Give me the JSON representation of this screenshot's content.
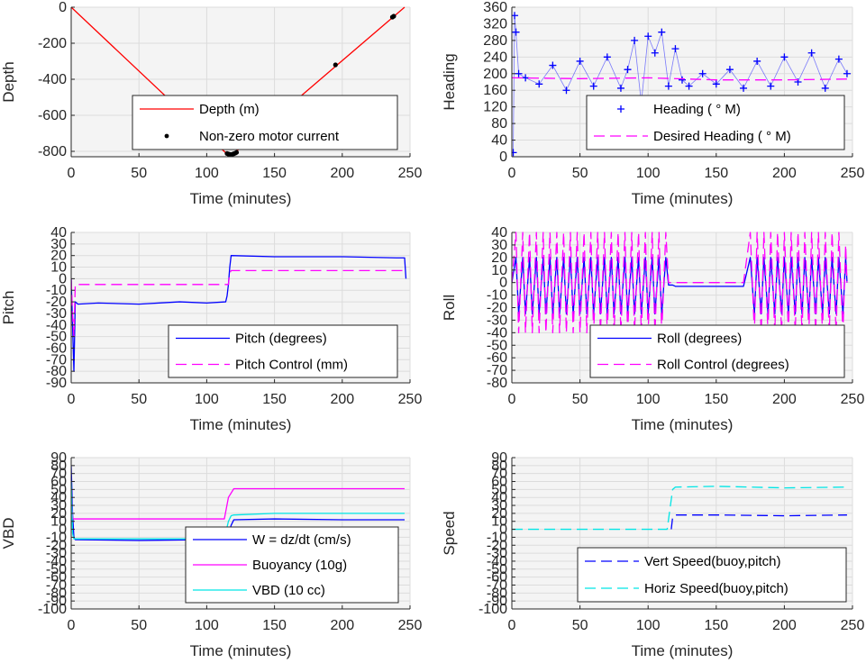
{
  "chart_data": [
    {
      "type": "line",
      "xlabel": "Time (minutes)",
      "ylabel": "Depth",
      "xlim": [
        0,
        250
      ],
      "ylim": [
        -830,
        0
      ],
      "xticks": [
        0,
        50,
        100,
        150,
        200,
        250
      ],
      "yticks": [
        0,
        -200,
        -400,
        -600,
        -800
      ],
      "legend_position": "lower-right",
      "series": [
        {
          "name": "Depth (m)",
          "style": "solid",
          "color": "#ff0000",
          "x": [
            0,
            115,
            117,
            120,
            246
          ],
          "y": [
            0,
            -815,
            -818,
            -812,
            0
          ]
        },
        {
          "name": "Non-zero motor current",
          "style": "dot",
          "color": "#000000",
          "x": [
            115,
            116,
            117,
            118,
            119,
            120,
            121,
            122,
            195,
            237,
            238
          ],
          "y": [
            -812,
            -815,
            -817,
            -818,
            -816,
            -813,
            -810,
            -806,
            -320,
            -55,
            -50
          ]
        }
      ]
    },
    {
      "type": "scatter",
      "xlabel": "Time (minutes)",
      "ylabel": "Heading",
      "xlim": [
        0,
        250
      ],
      "ylim": [
        0,
        360
      ],
      "xticks": [
        0,
        50,
        100,
        150,
        200,
        250
      ],
      "yticks": [
        0,
        40,
        80,
        120,
        160,
        200,
        240,
        280,
        320,
        360
      ],
      "legend_position": "lower-right",
      "series": [
        {
          "name": "Heading (  ° M)",
          "style": "plus",
          "color": "#0000ff",
          "x": [
            1,
            2,
            3,
            5,
            10,
            20,
            30,
            40,
            50,
            60,
            70,
            80,
            85,
            90,
            95,
            100,
            105,
            110,
            115,
            120,
            125,
            130,
            140,
            150,
            160,
            170,
            180,
            190,
            200,
            210,
            220,
            230,
            240,
            246
          ],
          "y": [
            10,
            340,
            300,
            200,
            190,
            175,
            220,
            160,
            230,
            170,
            240,
            165,
            210,
            280,
            130,
            290,
            250,
            300,
            170,
            260,
            185,
            170,
            200,
            175,
            210,
            165,
            230,
            170,
            240,
            180,
            250,
            165,
            235,
            200
          ]
        },
        {
          "name": "Desired Heading (    ° M)",
          "style": "dashed",
          "color": "#ff00ff",
          "x": [
            0,
            50,
            100,
            150,
            200,
            246
          ],
          "y": [
            190,
            188,
            190,
            185,
            185,
            187
          ]
        }
      ]
    },
    {
      "type": "line",
      "xlabel": "Time (minutes)",
      "ylabel": "Pitch",
      "xlim": [
        0,
        250
      ],
      "ylim": [
        -90,
        40
      ],
      "xticks": [
        0,
        50,
        100,
        150,
        200,
        250
      ],
      "yticks": [
        40,
        30,
        20,
        10,
        0,
        -10,
        -20,
        -30,
        -40,
        -50,
        -60,
        -70,
        -80,
        -90
      ],
      "legend_position": "lower-right",
      "series": [
        {
          "name": "Pitch (degrees)",
          "style": "solid",
          "color": "#0000ff",
          "x": [
            0,
            1,
            2,
            3,
            5,
            20,
            50,
            80,
            100,
            114,
            115,
            116,
            117,
            118,
            150,
            200,
            240,
            246,
            247
          ],
          "y": [
            0,
            -40,
            -80,
            -20,
            -22,
            -21,
            -22,
            -20,
            -21,
            -20,
            -15,
            -5,
            10,
            20,
            19,
            19,
            18,
            18,
            0
          ]
        },
        {
          "name": "Pitch Control (mm)",
          "style": "dashed",
          "color": "#ff00ff",
          "x": [
            0,
            1,
            2,
            3,
            10,
            100,
            114,
            116,
            117,
            118,
            150,
            200,
            246
          ],
          "y": [
            0,
            -30,
            -50,
            -5,
            -5,
            -5,
            -5,
            -5,
            5,
            7,
            7,
            7,
            7
          ]
        }
      ]
    },
    {
      "type": "line",
      "xlabel": "Time (minutes)",
      "ylabel": "Roll",
      "xlim": [
        0,
        250
      ],
      "ylim": [
        -80,
        40
      ],
      "xticks": [
        0,
        50,
        100,
        150,
        200,
        250
      ],
      "yticks": [
        40,
        30,
        20,
        10,
        0,
        -10,
        -20,
        -30,
        -40,
        -50,
        -60,
        -70,
        -80
      ],
      "legend_position": "lower-right",
      "series": [
        {
          "name": "Roll (degrees)",
          "style": "solid",
          "color": "#0000ff",
          "x": [
            0,
            3,
            5,
            8,
            10,
            13,
            15,
            18,
            20,
            23,
            25,
            28,
            30,
            33,
            35,
            38,
            40,
            43,
            45,
            48,
            50,
            53,
            55,
            58,
            60,
            63,
            65,
            68,
            70,
            73,
            75,
            78,
            80,
            83,
            85,
            88,
            90,
            93,
            95,
            98,
            100,
            103,
            105,
            108,
            110,
            113,
            115,
            118,
            120,
            125,
            130,
            140,
            150,
            160,
            170,
            175,
            178,
            180,
            183,
            185,
            188,
            190,
            193,
            195,
            198,
            200,
            203,
            205,
            208,
            210,
            213,
            215,
            218,
            220,
            223,
            225,
            228,
            230,
            233,
            235,
            238,
            240,
            243,
            245,
            246
          ],
          "y": [
            0,
            20,
            -25,
            20,
            -25,
            20,
            -25,
            20,
            -25,
            20,
            -25,
            20,
            -25,
            20,
            -25,
            20,
            -25,
            20,
            -25,
            20,
            -25,
            20,
            -25,
            20,
            -25,
            20,
            -25,
            20,
            -25,
            20,
            -25,
            20,
            -25,
            20,
            -25,
            20,
            -25,
            20,
            -25,
            20,
            -25,
            20,
            -25,
            20,
            -25,
            20,
            -2,
            -2,
            -3,
            -3,
            -3,
            -3,
            -3,
            -3,
            -3,
            20,
            -25,
            20,
            -25,
            20,
            -25,
            20,
            -25,
            20,
            -25,
            20,
            -25,
            20,
            -25,
            20,
            -25,
            20,
            -25,
            20,
            -25,
            20,
            -25,
            20,
            -25,
            20,
            -25,
            20,
            -25,
            20,
            0
          ]
        },
        {
          "name": "Roll Control (degrees)",
          "style": "dashed",
          "color": "#ff00ff",
          "x": [
            0,
            3,
            5,
            8,
            10,
            13,
            15,
            18,
            20,
            23,
            25,
            28,
            30,
            33,
            35,
            38,
            40,
            43,
            45,
            48,
            50,
            53,
            55,
            58,
            60,
            63,
            65,
            68,
            70,
            73,
            75,
            78,
            80,
            83,
            85,
            88,
            90,
            93,
            95,
            98,
            100,
            103,
            105,
            108,
            110,
            113,
            115,
            118,
            120,
            125,
            130,
            140,
            150,
            160,
            170,
            175,
            178,
            180,
            183,
            185,
            188,
            190,
            193,
            195,
            198,
            200,
            203,
            205,
            208,
            210,
            213,
            215,
            218,
            220,
            223,
            225,
            228,
            230,
            233,
            235,
            238,
            240,
            243,
            245,
            246
          ],
          "y": [
            0,
            40,
            -40,
            40,
            -40,
            40,
            -40,
            40,
            -40,
            40,
            -40,
            40,
            -40,
            40,
            -40,
            40,
            -40,
            40,
            -40,
            40,
            -40,
            40,
            -40,
            40,
            -40,
            40,
            -40,
            40,
            -40,
            40,
            -40,
            40,
            -40,
            40,
            -40,
            40,
            -40,
            40,
            -40,
            40,
            -40,
            40,
            -40,
            40,
            -40,
            40,
            0,
            0,
            0,
            0,
            0,
            0,
            0,
            0,
            0,
            40,
            -40,
            40,
            -40,
            40,
            -40,
            40,
            -40,
            40,
            -40,
            40,
            -40,
            40,
            -40,
            40,
            -40,
            40,
            -40,
            40,
            -40,
            40,
            -40,
            40,
            -40,
            40,
            -40,
            40,
            -40,
            30,
            0
          ]
        }
      ]
    },
    {
      "type": "line",
      "xlabel": "Time (minutes)",
      "ylabel": "VBD",
      "xlim": [
        0,
        250
      ],
      "ylim": [
        -100,
        90
      ],
      "xticks": [
        0,
        50,
        100,
        150,
        200,
        250
      ],
      "yticks": [
        90,
        80,
        70,
        60,
        50,
        40,
        30,
        20,
        10,
        0,
        -10,
        -20,
        -30,
        -40,
        -50,
        -60,
        -70,
        -80,
        -90,
        -100
      ],
      "legend_position": "lower-right",
      "series": [
        {
          "name": "W = dz/dt (cm/s)",
          "style": "solid",
          "color": "#0000ff",
          "x": [
            0,
            1,
            2,
            3,
            50,
            100,
            113,
            115,
            118,
            120,
            150,
            200,
            240,
            246
          ],
          "y": [
            80,
            20,
            -10,
            -13,
            -14,
            -13,
            -13,
            -12,
            5,
            12,
            13,
            12,
            12,
            12
          ]
        },
        {
          "name": "Buoyancy (10g)",
          "style": "solid",
          "color": "#ff00ff",
          "x": [
            0,
            1,
            2,
            3,
            50,
            100,
            113,
            116,
            120,
            150,
            200,
            246
          ],
          "y": [
            50,
            14,
            13,
            13,
            13,
            13,
            13,
            40,
            51,
            51,
            51,
            51
          ]
        },
        {
          "name": "VBD (10 cc)",
          "style": "solid",
          "color": "#00e5e5",
          "x": [
            0,
            1,
            2,
            3,
            50,
            100,
            113,
            116,
            118,
            120,
            150,
            200,
            246
          ],
          "y": [
            60,
            -5,
            -12,
            -12,
            -12,
            -12,
            -12,
            10,
            17,
            18,
            20,
            20,
            20
          ]
        }
      ]
    },
    {
      "type": "line",
      "xlabel": "Time (minutes)",
      "ylabel": "Speed",
      "xlim": [
        0,
        250
      ],
      "ylim": [
        -100,
        90
      ],
      "xticks": [
        0,
        50,
        100,
        150,
        200,
        250
      ],
      "yticks": [
        90,
        80,
        70,
        60,
        50,
        40,
        30,
        20,
        10,
        0,
        -10,
        -20,
        -30,
        -40,
        -50,
        -60,
        -70,
        -80,
        -90,
        -100
      ],
      "legend_position": "lower-right",
      "series": [
        {
          "name": "Vert Speed(buoy,pitch)",
          "style": "dashed",
          "color": "#0000ff",
          "x": [
            117,
            118,
            120,
            130,
            150,
            200,
            246
          ],
          "y": [
            0,
            15,
            18,
            18,
            18,
            17,
            18
          ]
        },
        {
          "name": "Horiz Speed(buoy,pitch)",
          "style": "dashed",
          "color": "#00e5e5",
          "x": [
            0,
            50,
            100,
            114,
            116,
            118,
            120,
            150,
            200,
            246
          ],
          "y": [
            0,
            0,
            0,
            0,
            25,
            50,
            53,
            54,
            52,
            53
          ]
        }
      ]
    }
  ]
}
